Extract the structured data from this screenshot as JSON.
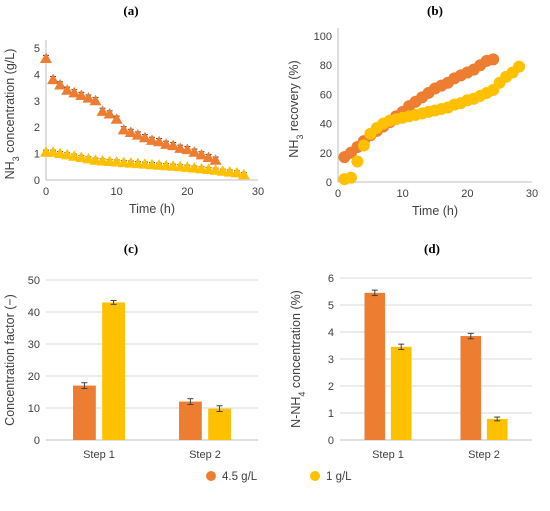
{
  "colors": {
    "series_a": "#ED7D31",
    "series_b": "#FFC000",
    "axis": "#BFBFBF",
    "grid": "#D9D9D9",
    "text": "#404040",
    "error": "#404040"
  },
  "legend": [
    {
      "label": "4.5 g/L",
      "color": "#ED7D31",
      "marker": "circle"
    },
    {
      "label": "1 g/L",
      "color": "#FFC000",
      "marker": "circle"
    }
  ],
  "chart_data": [
    {
      "panel": "(a)",
      "type": "scatter",
      "xlabel": "Time (h)",
      "ylabel": {
        "main": "NH",
        "sub": "3",
        "rest": " concentration (g/L)"
      },
      "xlim": [
        0,
        30
      ],
      "ylim": [
        0,
        5
      ],
      "xticks": [
        "0",
        "10",
        "20",
        "30"
      ],
      "yticks": [
        "0",
        "1",
        "2",
        "3",
        "4",
        "5"
      ],
      "marker": "triangle",
      "grid": false,
      "series": [
        {
          "color": "#ED7D31",
          "x": [
            0,
            1,
            2,
            3,
            4,
            5,
            6,
            7,
            8,
            9,
            10,
            11,
            12,
            13,
            14,
            15,
            16,
            17,
            18,
            19,
            20,
            21,
            22,
            23,
            24
          ],
          "y": [
            4.6,
            3.8,
            3.6,
            3.4,
            3.3,
            3.2,
            3.1,
            3.0,
            2.6,
            2.5,
            2.3,
            1.9,
            1.8,
            1.7,
            1.6,
            1.5,
            1.45,
            1.35,
            1.3,
            1.2,
            1.15,
            1.05,
            0.95,
            0.85,
            0.75
          ],
          "err": 0.12
        },
        {
          "color": "#FFC000",
          "x": [
            0,
            1,
            2,
            3,
            4,
            5,
            6,
            7,
            8,
            9,
            10,
            11,
            12,
            13,
            14,
            15,
            16,
            17,
            18,
            19,
            20,
            21,
            22,
            23,
            24,
            25,
            26,
            27,
            28
          ],
          "y": [
            1.05,
            1.05,
            1.0,
            0.95,
            0.9,
            0.85,
            0.8,
            0.75,
            0.72,
            0.7,
            0.68,
            0.66,
            0.64,
            0.62,
            0.6,
            0.58,
            0.56,
            0.54,
            0.52,
            0.5,
            0.48,
            0.45,
            0.42,
            0.4,
            0.37,
            0.33,
            0.3,
            0.27,
            0.2
          ],
          "err": 0.08
        }
      ]
    },
    {
      "panel": "(b)",
      "type": "scatter",
      "xlabel": "Time (h)",
      "ylabel": {
        "main": "NH",
        "sub": "3",
        "rest": " recovery (%)"
      },
      "xlim": [
        0,
        30
      ],
      "ylim": [
        0,
        100
      ],
      "xticks": [
        "0",
        "10",
        "20",
        "30"
      ],
      "yticks": [
        "0",
        "20",
        "40",
        "60",
        "80",
        "100"
      ],
      "marker": "circle",
      "grid": false,
      "series": [
        {
          "color": "#ED7D31",
          "x": [
            1,
            2,
            3,
            4,
            5,
            6,
            7,
            8,
            9,
            10,
            11,
            12,
            13,
            14,
            15,
            16,
            17,
            18,
            19,
            20,
            21,
            22,
            23,
            24
          ],
          "y": [
            17,
            20,
            24,
            28,
            32,
            35,
            38,
            41,
            45,
            48,
            52,
            55,
            58,
            61,
            64,
            66,
            68,
            71,
            73,
            75,
            77,
            80,
            83,
            84
          ]
        },
        {
          "color": "#FFC000",
          "x": [
            1,
            2,
            3,
            4,
            5,
            6,
            7,
            8,
            9,
            10,
            11,
            12,
            13,
            14,
            15,
            16,
            17,
            18,
            19,
            20,
            21,
            22,
            23,
            24,
            25,
            26,
            27,
            28
          ],
          "y": [
            2,
            3,
            14,
            25,
            33,
            37,
            40,
            42,
            43,
            44,
            45,
            46,
            47,
            48,
            49,
            50,
            51,
            53,
            54,
            56,
            57,
            59,
            61,
            63,
            68,
            72,
            75,
            79
          ]
        }
      ]
    },
    {
      "panel": "(c)",
      "type": "bar",
      "ylabel": {
        "main": "Concentration factor (−)",
        "sub": "",
        "rest": ""
      },
      "categories": [
        "Step 1",
        "Step 2"
      ],
      "ylim": [
        0,
        50
      ],
      "yticks": [
        "0",
        "10",
        "20",
        "30",
        "40",
        "50"
      ],
      "grid": true,
      "series": [
        {
          "color": "#ED7D31",
          "values": [
            17,
            12
          ],
          "err": [
            0.9,
            0.9
          ]
        },
        {
          "color": "#FFC000",
          "values": [
            43,
            9.8
          ],
          "err": [
            0.6,
            0.9
          ]
        }
      ]
    },
    {
      "panel": "(d)",
      "type": "bar",
      "ylabel": {
        "main": "N-NH",
        "sub": "4",
        "rest": " concentration (%)"
      },
      "categories": [
        "Step 1",
        "Step 2"
      ],
      "ylim": [
        0,
        6
      ],
      "yticks": [
        "0",
        "1",
        "2",
        "3",
        "4",
        "5",
        "6"
      ],
      "grid": true,
      "series": [
        {
          "color": "#ED7D31",
          "values": [
            5.45,
            3.85
          ],
          "err": [
            0.1,
            0.1
          ]
        },
        {
          "color": "#FFC000",
          "values": [
            3.45,
            0.78
          ],
          "err": [
            0.1,
            0.07
          ]
        }
      ]
    }
  ]
}
